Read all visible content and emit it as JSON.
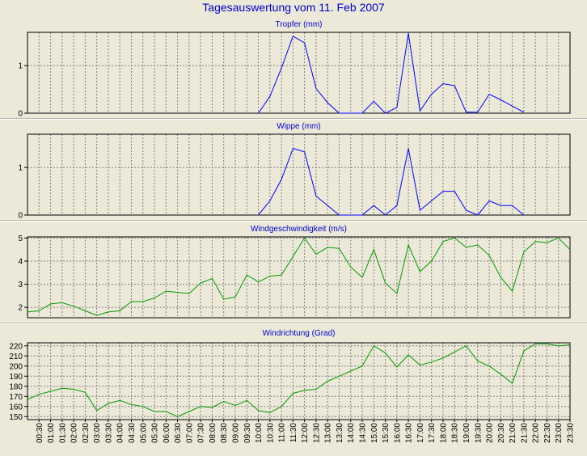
{
  "page": {
    "title": "Tagesauswertung vom 11. Feb 2007",
    "colors": {
      "background": "#ece9d8",
      "title": "#0000cc",
      "rain": "#0000ff",
      "wind": "#009900",
      "grid": "#808080"
    }
  },
  "chart_data": [
    {
      "type": "line",
      "title": "Tropfer (mm)",
      "ylim": [
        0,
        1.7
      ],
      "yticks": [
        0,
        1
      ],
      "grid": true,
      "series": [
        {
          "x": [
            10.0,
            10.5,
            11.0,
            11.5,
            12.0,
            12.5,
            13.0,
            13.5,
            14.0,
            14.5,
            15.0,
            15.5,
            16.0,
            16.5,
            17.0,
            17.5,
            18.0,
            18.5,
            19.0,
            19.5,
            20.0,
            20.5,
            21.0,
            21.5
          ],
          "y": [
            0,
            0.35,
            0.95,
            1.62,
            1.48,
            0.52,
            0.22,
            0,
            0,
            0,
            0.25,
            0,
            0.12,
            1.68,
            0.05,
            0.4,
            0.62,
            0.58,
            0.02,
            0.02,
            0.4,
            0.28,
            0.15,
            0.02
          ],
          "color": "#0000ff"
        }
      ]
    },
    {
      "type": "line",
      "title": "Wippe (mm)",
      "ylim": [
        0,
        1.7
      ],
      "yticks": [
        0,
        1
      ],
      "grid": true,
      "series": [
        {
          "x": [
            10.0,
            10.5,
            11.0,
            11.5,
            12.0,
            12.5,
            13.0,
            13.5,
            14.0,
            14.5,
            15.0,
            15.5,
            16.0,
            16.5,
            17.0,
            17.5,
            18.0,
            18.5,
            19.0,
            19.5,
            20.0,
            20.5,
            21.0,
            21.5
          ],
          "y": [
            0,
            0.3,
            0.75,
            1.4,
            1.33,
            0.4,
            0.2,
            0,
            0,
            0,
            0.2,
            0,
            0.2,
            1.4,
            0.1,
            0.3,
            0.5,
            0.5,
            0.1,
            0,
            0.3,
            0.2,
            0.2,
            0
          ],
          "color": "#0000ff"
        }
      ]
    },
    {
      "type": "line",
      "title": "Windgeschwindigkeit (m/s)",
      "ylim": [
        1.55,
        5.05
      ],
      "yticks": [
        2,
        3,
        4,
        5
      ],
      "grid": true,
      "series": [
        {
          "x": [
            0.0,
            0.5,
            1.0,
            1.5,
            2.0,
            2.5,
            3.0,
            3.5,
            4.0,
            4.5,
            5.0,
            5.5,
            6.0,
            6.5,
            7.0,
            7.5,
            8.0,
            8.5,
            9.0,
            9.5,
            10.0,
            10.5,
            11.0,
            11.5,
            12.0,
            12.5,
            13.0,
            13.5,
            14.0,
            14.5,
            15.0,
            15.5,
            16.0,
            16.5,
            17.0,
            17.5,
            18.0,
            18.5,
            19.0,
            19.5,
            20.0,
            20.5,
            21.0,
            21.5,
            22.0,
            22.5,
            23.0,
            23.5
          ],
          "y": [
            1.8,
            1.85,
            2.15,
            2.2,
            2.05,
            1.85,
            1.65,
            1.8,
            1.85,
            2.25,
            2.25,
            2.4,
            2.7,
            2.65,
            2.6,
            3.05,
            3.25,
            2.35,
            2.45,
            3.4,
            3.1,
            3.35,
            3.4,
            4.2,
            5.0,
            4.3,
            4.6,
            4.55,
            3.75,
            3.3,
            4.5,
            3.05,
            2.6,
            4.7,
            3.55,
            4.0,
            4.85,
            5.0,
            4.6,
            4.7,
            4.25,
            3.3,
            2.7,
            4.4,
            4.85,
            4.8,
            5.0,
            4.5
          ],
          "color": "#009900"
        }
      ]
    },
    {
      "type": "line",
      "title": "Windrichtung (Grad)",
      "ylim": [
        147,
        223
      ],
      "yticks": [
        150,
        160,
        170,
        180,
        190,
        200,
        210,
        220
      ],
      "grid": true,
      "series": [
        {
          "x": [
            0.0,
            0.5,
            1.0,
            1.5,
            2.0,
            2.5,
            3.0,
            3.5,
            4.0,
            4.5,
            5.0,
            5.5,
            6.0,
            6.5,
            7.0,
            7.5,
            8.0,
            8.5,
            9.0,
            9.5,
            10.0,
            10.5,
            11.0,
            11.5,
            12.0,
            12.5,
            13.0,
            13.5,
            14.0,
            14.5,
            15.0,
            15.5,
            16.0,
            16.5,
            17.0,
            17.5,
            18.0,
            18.5,
            19.0,
            19.5,
            20.0,
            20.5,
            21.0,
            21.5,
            22.0,
            22.5,
            23.0,
            23.5
          ],
          "y": [
            167,
            172,
            175,
            178,
            177,
            174,
            156,
            163,
            166,
            162,
            160,
            155,
            155,
            150,
            155,
            160,
            159,
            165,
            161,
            166,
            156,
            154,
            160,
            173,
            176,
            177,
            185,
            190,
            195,
            200,
            220,
            213,
            199,
            211,
            201,
            204,
            208,
            214,
            220,
            205,
            200,
            192,
            183,
            215,
            222,
            222,
            220,
            221
          ],
          "color": "#009900"
        }
      ]
    }
  ],
  "x_axis": {
    "labels": [
      "00:30",
      "01:00",
      "01:30",
      "02:00",
      "02:30",
      "03:00",
      "03:30",
      "04:00",
      "04:30",
      "05:00",
      "05:30",
      "06:00",
      "06:30",
      "07:00",
      "07:30",
      "08:00",
      "08:30",
      "09:00",
      "09:30",
      "10:00",
      "10:30",
      "11:00",
      "11:30",
      "12:00",
      "12:30",
      "13:00",
      "13:30",
      "14:00",
      "14:30",
      "15:00",
      "15:30",
      "16:00",
      "16:30",
      "17:00",
      "17:30",
      "18:00",
      "18:30",
      "19:00",
      "19:30",
      "20:00",
      "20:30",
      "21:00",
      "21:30",
      "22:00",
      "22:30",
      "23:00",
      "23:30"
    ]
  }
}
